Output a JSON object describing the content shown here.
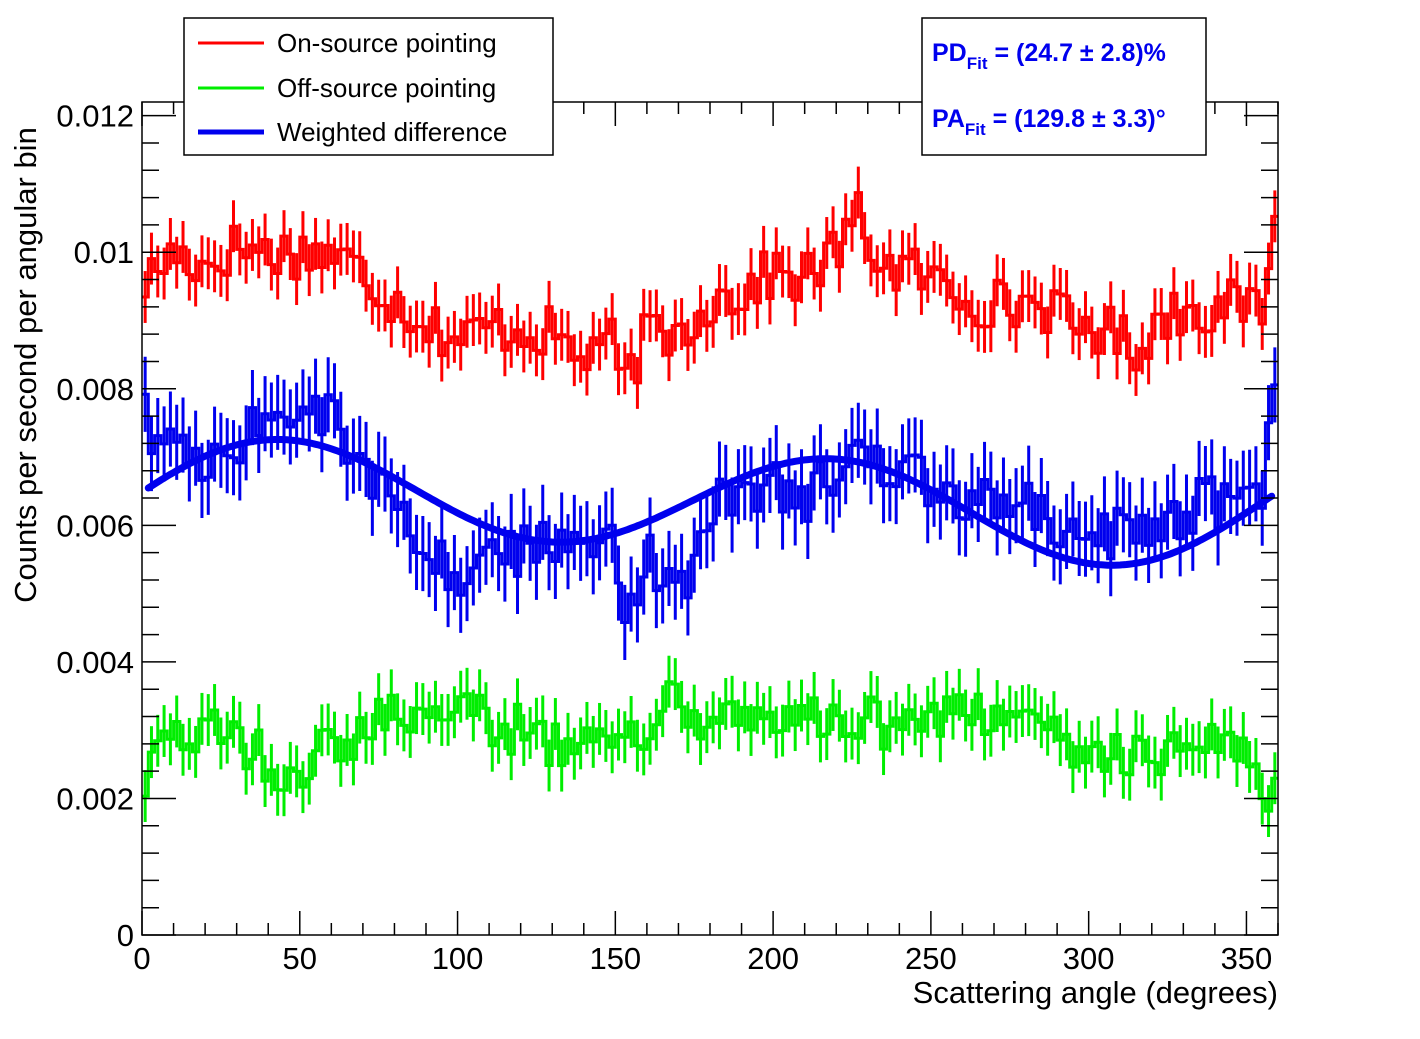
{
  "chart_data": {
    "type": "line",
    "title": "",
    "xlabel": "Scattering angle (degrees)",
    "ylabel": "Counts per second per angular bin",
    "xlim": [
      0,
      360
    ],
    "ylim": [
      0,
      0.0122
    ],
    "x_ticks": [
      0,
      50,
      100,
      150,
      200,
      250,
      300,
      350
    ],
    "x_tick_labels": [
      "0",
      "50",
      "100",
      "150",
      "200",
      "250",
      "300",
      "350"
    ],
    "y_ticks": [
      0,
      0.002,
      0.004,
      0.006,
      0.008,
      0.01,
      0.012
    ],
    "y_tick_labels": [
      "0",
      "0.002",
      "0.004",
      "0.006",
      "0.008",
      "0.01",
      "0.012"
    ],
    "bin_width": 2,
    "legend": {
      "position": "top-left",
      "entries": [
        {
          "label": "On-source pointing",
          "color": "#ff0000"
        },
        {
          "label": "Off-source pointing",
          "color": "#00ee00"
        },
        {
          "label": "Weighted difference",
          "color": "#0000ee"
        }
      ]
    },
    "fit_box": {
      "position": "top-right",
      "color": "#0000ee",
      "lines": [
        {
          "main": "PD",
          "sub": "Fit",
          "rest": " = (24.7 ± 2.8)%"
        },
        {
          "main": "PA",
          "sub": "Fit",
          "rest": " = (129.8 ± 3.3)°"
        }
      ]
    },
    "series": [
      {
        "name": "On-source pointing",
        "color": "#ff0000",
        "err": 0.00038,
        "anchors_x": [
          0,
          10,
          20,
          30,
          40,
          50,
          60,
          70,
          80,
          90,
          100,
          110,
          120,
          130,
          140,
          145,
          150,
          152,
          160,
          170,
          180,
          190,
          200,
          210,
          220,
          227,
          235,
          245,
          255,
          265,
          275,
          285,
          295,
          305,
          315,
          325,
          335,
          345,
          355,
          358
        ],
        "anchors_y": [
          0.0095,
          0.01,
          0.0098,
          0.0101,
          0.01,
          0.01,
          0.01,
          0.0097,
          0.0093,
          0.009,
          0.0087,
          0.0089,
          0.0089,
          0.0088,
          0.0084,
          0.0088,
          0.0086,
          0.0079,
          0.0088,
          0.0088,
          0.0093,
          0.0094,
          0.0097,
          0.0096,
          0.01,
          0.0105,
          0.0098,
          0.0097,
          0.0095,
          0.0093,
          0.0092,
          0.0093,
          0.0089,
          0.0089,
          0.0086,
          0.0091,
          0.0092,
          0.0092,
          0.0092,
          0.0103
        ]
      },
      {
        "name": "Off-source pointing",
        "color": "#00ee00",
        "err": 0.00038,
        "anchors_x": [
          0,
          5,
          10,
          20,
          30,
          40,
          50,
          60,
          70,
          80,
          90,
          100,
          110,
          120,
          130,
          140,
          150,
          160,
          170,
          180,
          190,
          200,
          210,
          220,
          230,
          240,
          250,
          260,
          270,
          280,
          290,
          300,
          310,
          320,
          330,
          340,
          350,
          358
        ],
        "anchors_y": [
          0.0018,
          0.0026,
          0.0029,
          0.0031,
          0.0029,
          0.0025,
          0.0025,
          0.0027,
          0.003,
          0.0033,
          0.0033,
          0.0034,
          0.0031,
          0.003,
          0.0028,
          0.003,
          0.003,
          0.003,
          0.0035,
          0.003,
          0.0032,
          0.0033,
          0.0031,
          0.0032,
          0.0031,
          0.003,
          0.003,
          0.0033,
          0.0031,
          0.003,
          0.0029,
          0.0028,
          0.0027,
          0.0026,
          0.0029,
          0.0029,
          0.0028,
          0.002
        ]
      },
      {
        "name": "Weighted difference",
        "color": "#0000ee",
        "err": 0.00055,
        "anchors_x": [
          0,
          10,
          20,
          30,
          40,
          50,
          60,
          70,
          80,
          90,
          100,
          110,
          120,
          130,
          140,
          150,
          152,
          160,
          170,
          180,
          190,
          200,
          210,
          220,
          227,
          235,
          245,
          255,
          265,
          275,
          285,
          295,
          305,
          315,
          325,
          335,
          345,
          355,
          358
        ],
        "anchors_y": [
          0.0076,
          0.0071,
          0.0068,
          0.0072,
          0.0075,
          0.0075,
          0.0077,
          0.0068,
          0.0062,
          0.0058,
          0.0052,
          0.0057,
          0.0056,
          0.0058,
          0.0054,
          0.006,
          0.0042,
          0.0056,
          0.0048,
          0.0063,
          0.0064,
          0.0066,
          0.0064,
          0.0068,
          0.0075,
          0.0068,
          0.0068,
          0.0065,
          0.0064,
          0.0063,
          0.0062,
          0.006,
          0.0058,
          0.006,
          0.006,
          0.0063,
          0.0064,
          0.0063,
          0.0082
        ]
      }
    ],
    "fit_curve": {
      "name": "Modulation fit",
      "color": "#0000ee",
      "form": "A * (1 + B * cos(2*(x - C - 90) * pi/180)) + D*sin(x*pi/180)",
      "A": 0.00635,
      "B": 0.12,
      "C": 129.8,
      "D": 0.00022,
      "x_range": [
        2,
        358
      ]
    }
  }
}
